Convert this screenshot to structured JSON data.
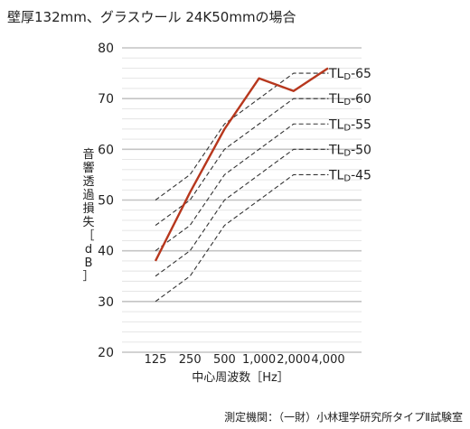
{
  "title": "壁厚132mm、グラスウール 24K50mmの場合",
  "source_note": "測定機関：（一財）小林理学研究所タイプⅡ試験室",
  "chart_data": {
    "type": "line",
    "xlabel": "中心周波数［Hz］",
    "ylabel": "音響透過損失［dB］",
    "categories": [
      "125",
      "250",
      "500",
      "1,000",
      "2,000",
      "4,000"
    ],
    "ylim": [
      20,
      80
    ],
    "yticks": [
      20,
      30,
      40,
      50,
      60,
      70,
      80
    ],
    "grid": true,
    "series": [
      {
        "name": "",
        "style": "solid",
        "color": "#b7371d",
        "values": [
          38,
          51.5,
          64,
          74,
          71.5,
          76
        ]
      },
      {
        "name": "TLD-65",
        "style": "dashed",
        "color": "#333333",
        "values": [
          50,
          55,
          65,
          70,
          75,
          75
        ]
      },
      {
        "name": "TLD-60",
        "style": "dashed",
        "color": "#333333",
        "values": [
          45,
          50,
          60,
          65,
          70,
          70
        ]
      },
      {
        "name": "TLD-55",
        "style": "dashed",
        "color": "#333333",
        "values": [
          40,
          45,
          55,
          60,
          65,
          65
        ]
      },
      {
        "name": "TLD-50",
        "style": "dashed",
        "color": "#333333",
        "values": [
          35,
          40,
          50,
          55,
          60,
          60
        ]
      },
      {
        "name": "TLD-45",
        "style": "dashed",
        "color": "#333333",
        "values": [
          30,
          35,
          45,
          50,
          55,
          55
        ]
      }
    ],
    "curve_labels": [
      {
        "main": "TL",
        "sub": "D",
        "suffix": "-65"
      },
      {
        "main": "TL",
        "sub": "D",
        "suffix": "-60"
      },
      {
        "main": "TL",
        "sub": "D",
        "suffix": "-55"
      },
      {
        "main": "TL",
        "sub": "D",
        "suffix": "-50"
      },
      {
        "main": "TL",
        "sub": "D",
        "suffix": "-45"
      }
    ]
  }
}
